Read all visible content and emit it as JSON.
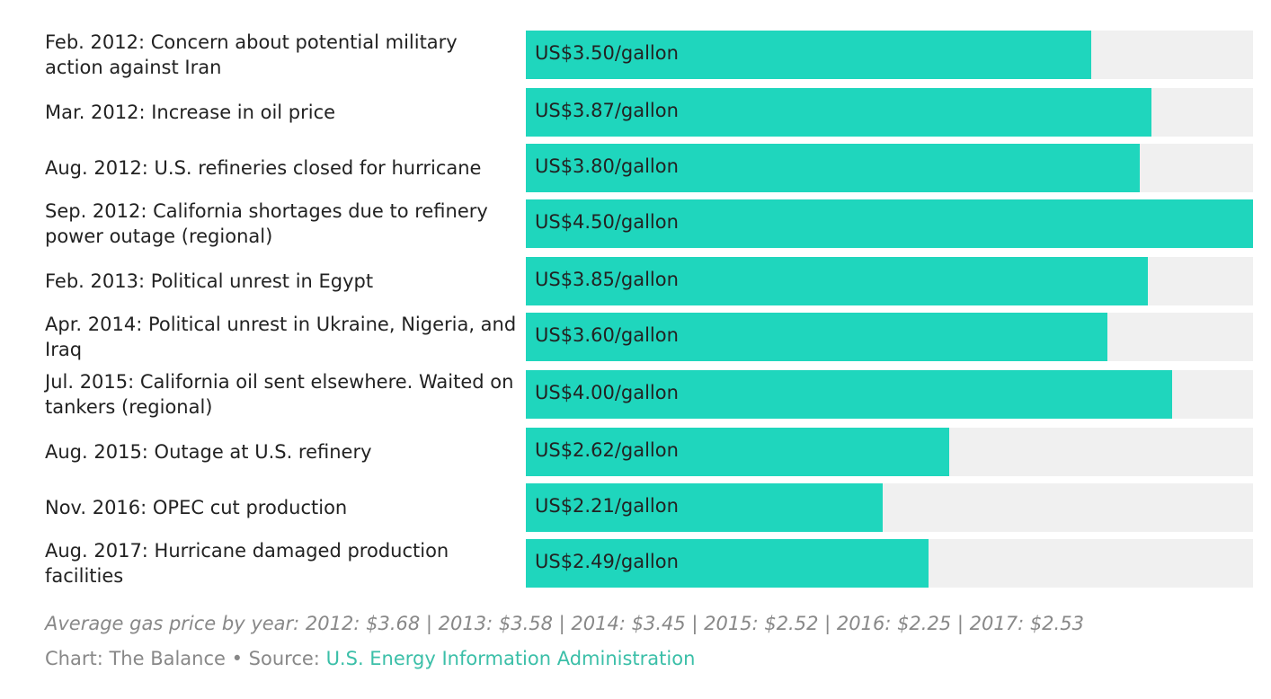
{
  "chart_data": {
    "type": "bar",
    "orientation": "horizontal",
    "xlim": [
      0,
      4.5
    ],
    "categories": [
      "Feb. 2012: Concern about potential military action against Iran",
      "Mar. 2012: Increase in oil price",
      "Aug. 2012: U.S. refineries closed for hurricane",
      "Sep. 2012: California shortages due to refinery power outage (regional)",
      "Feb. 2013: Political unrest in Egypt",
      "Apr. 2014: Political unrest in Ukraine, Nigeria, and Iraq",
      "Jul. 2015: California oil sent elsewhere. Waited on tankers (regional)",
      "Aug. 2015: Outage at U.S. refinery",
      "Nov. 2016: OPEC cut production",
      "Aug. 2017: Hurricane damaged production facilities"
    ],
    "values": [
      3.5,
      3.87,
      3.8,
      4.5,
      3.85,
      3.6,
      4.0,
      2.62,
      2.21,
      2.49
    ],
    "value_labels": [
      "US$3.50/gallon",
      "US$3.87/gallon",
      "US$3.80/gallon",
      "US$4.50/gallon",
      "US$3.85/gallon",
      "US$3.60/gallon",
      "US$4.00/gallon",
      "US$2.62/gallon",
      "US$2.21/gallon",
      "US$2.49/gallon"
    ],
    "bar_color": "#1fd6bd",
    "track_color": "#f0f0f0"
  },
  "footer": {
    "note": "Average gas price by year: 2012: $3.68 | 2013: $3.58 | 2014: $3.45 | 2015: $2.52 | 2016: $2.25 | 2017: $2.53",
    "credit": "Chart: The Balance • Source: ",
    "source_link": "U.S. Energy Information Administration"
  }
}
